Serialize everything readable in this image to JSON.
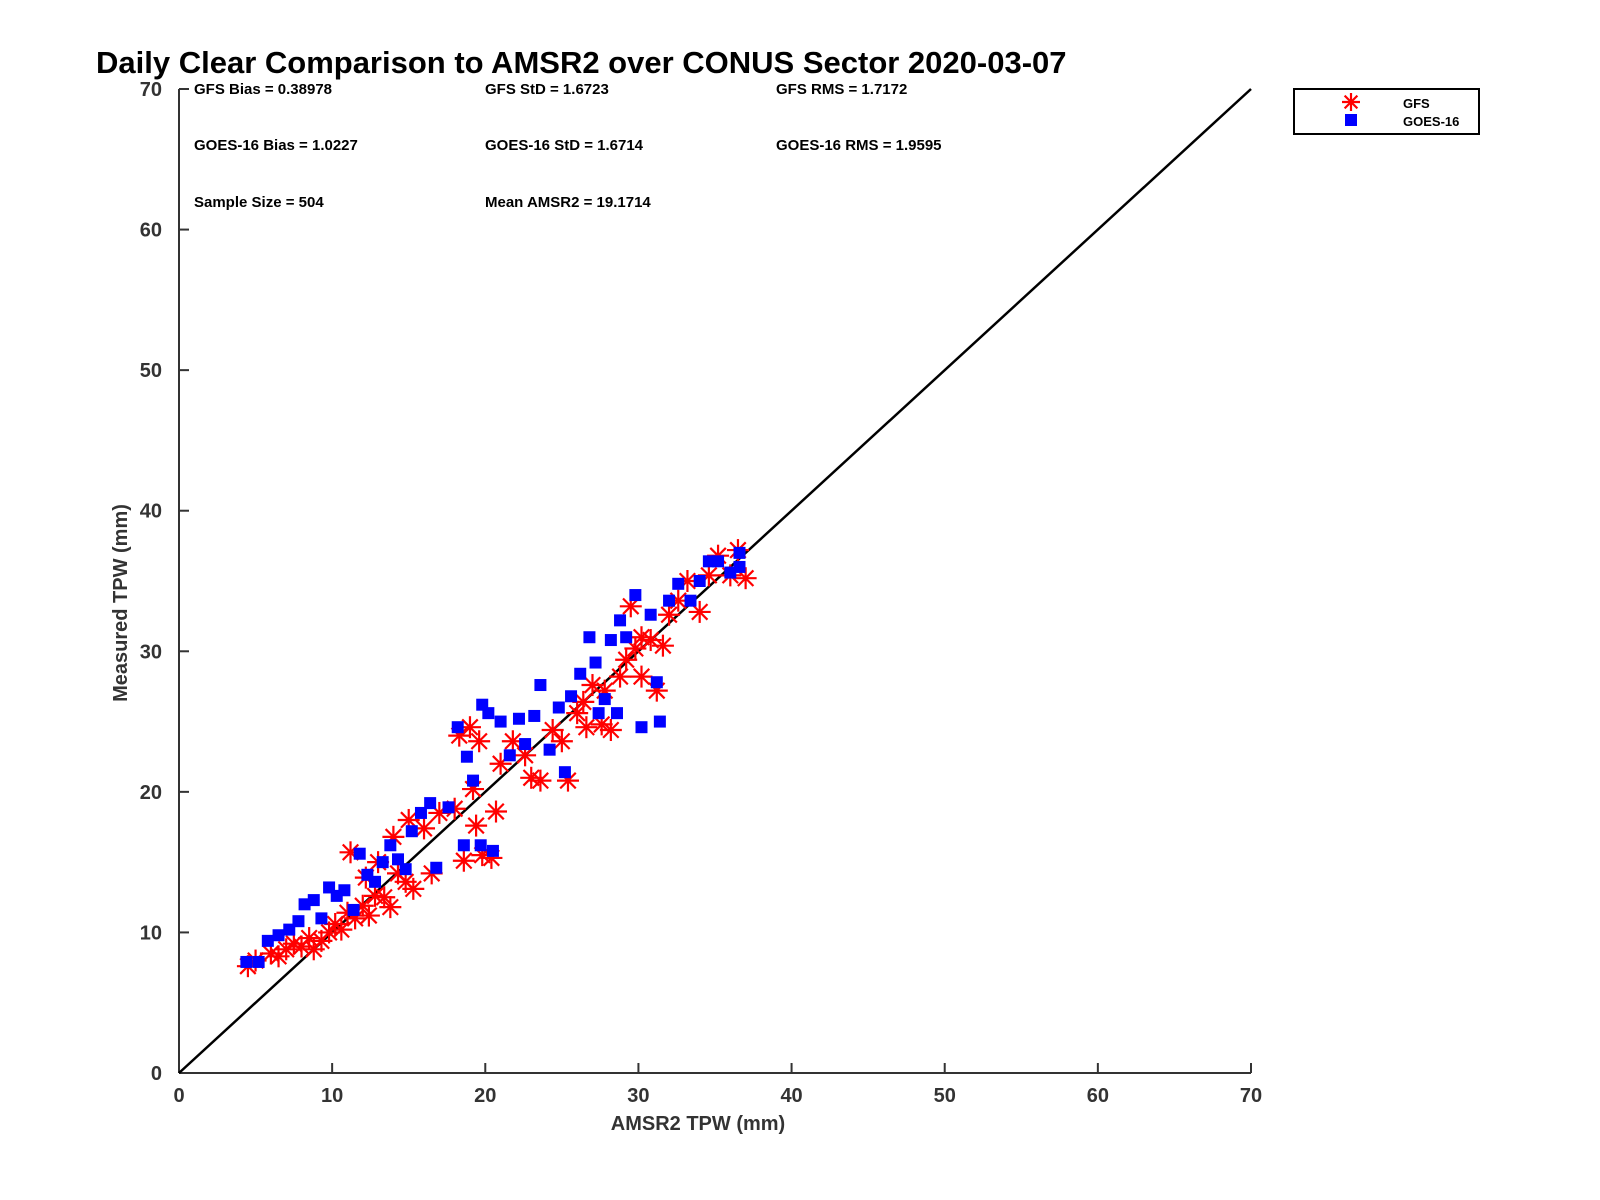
{
  "colors": {
    "gfs": "#ff0000",
    "goes": "#0000ff",
    "line": "#000000"
  },
  "stats": {
    "gfs_bias": "GFS Bias = 0.38978",
    "gfs_std": "GFS StD = 1.6723",
    "gfs_rms": "GFS RMS = 1.7172",
    "goes_bias": "GOES-16 Bias = 1.0227",
    "goes_std": "GOES-16 StD = 1.6714",
    "goes_rms": "GOES-16 RMS = 1.9595",
    "sample_size": "Sample Size = 504",
    "mean_amsr2": "Mean AMSR2 = 19.1714"
  },
  "chart_data": {
    "type": "scatter",
    "title": "Daily Clear Comparison to AMSR2 over CONUS Sector 2020-03-07",
    "xlabel": "AMSR2 TPW (mm)",
    "ylabel": "Measured TPW (mm)",
    "xlim": [
      0,
      70
    ],
    "ylim": [
      0,
      70
    ],
    "xticks": [
      "0",
      "10",
      "20",
      "30",
      "40",
      "50",
      "60",
      "70"
    ],
    "yticks": [
      "0",
      "10",
      "20",
      "30",
      "40",
      "50",
      "60",
      "70"
    ],
    "legend_position": "outside-top-right",
    "reference_line": {
      "name": "1:1",
      "from": [
        0,
        0
      ],
      "to": [
        70,
        70
      ]
    },
    "series": [
      {
        "name": "GFS",
        "marker": "asterisk",
        "points": [
          [
            4.5,
            7.6
          ],
          [
            5.0,
            8.0
          ],
          [
            6.0,
            8.5
          ],
          [
            6.5,
            8.3
          ],
          [
            7.0,
            8.8
          ],
          [
            7.5,
            9.2
          ],
          [
            8.0,
            9.0
          ],
          [
            8.5,
            9.6
          ],
          [
            8.8,
            8.8
          ],
          [
            9.3,
            9.4
          ],
          [
            9.8,
            10.0
          ],
          [
            10.2,
            10.6
          ],
          [
            10.6,
            10.2
          ],
          [
            11.0,
            11.4
          ],
          [
            11.5,
            11.0
          ],
          [
            12.0,
            11.9
          ],
          [
            12.4,
            11.2
          ],
          [
            12.8,
            12.6
          ],
          [
            13.4,
            12.5
          ],
          [
            13.8,
            11.8
          ],
          [
            14.3,
            14.2
          ],
          [
            14.8,
            13.6
          ],
          [
            15.3,
            13.1
          ],
          [
            16.5,
            14.2
          ],
          [
            11.2,
            15.7
          ],
          [
            12.2,
            13.9
          ],
          [
            13.0,
            15.0
          ],
          [
            14.0,
            16.8
          ],
          [
            15.0,
            18.0
          ],
          [
            16.0,
            17.4
          ],
          [
            17.0,
            18.5
          ],
          [
            18.0,
            18.8
          ],
          [
            18.3,
            24.0
          ],
          [
            19.0,
            24.6
          ],
          [
            19.6,
            23.6
          ],
          [
            18.6,
            15.1
          ],
          [
            19.4,
            17.6
          ],
          [
            19.8,
            15.5
          ],
          [
            20.4,
            15.3
          ],
          [
            20.7,
            18.6
          ],
          [
            19.2,
            20.2
          ],
          [
            21.0,
            22.0
          ],
          [
            21.8,
            23.6
          ],
          [
            22.6,
            22.6
          ],
          [
            23.0,
            21.0
          ],
          [
            23.6,
            20.8
          ],
          [
            24.4,
            24.4
          ],
          [
            25.0,
            23.6
          ],
          [
            25.4,
            20.8
          ],
          [
            26.0,
            25.6
          ],
          [
            26.6,
            24.6
          ],
          [
            27.0,
            27.6
          ],
          [
            27.6,
            24.8
          ],
          [
            28.2,
            24.4
          ],
          [
            28.8,
            28.2
          ],
          [
            29.2,
            29.4
          ],
          [
            29.8,
            30.2
          ],
          [
            30.2,
            28.2
          ],
          [
            30.8,
            30.8
          ],
          [
            31.2,
            27.2
          ],
          [
            31.6,
            30.4
          ],
          [
            32.0,
            32.6
          ],
          [
            32.6,
            33.6
          ],
          [
            33.2,
            35.0
          ],
          [
            34.0,
            32.8
          ],
          [
            34.6,
            35.4
          ],
          [
            35.2,
            36.8
          ],
          [
            36.0,
            35.4
          ],
          [
            36.5,
            37.2
          ],
          [
            37.0,
            35.2
          ],
          [
            29.5,
            33.2
          ],
          [
            30.2,
            31.0
          ],
          [
            26.4,
            26.4
          ],
          [
            27.8,
            27.2
          ]
        ]
      },
      {
        "name": "GOES-16",
        "marker": "square",
        "points": [
          [
            4.4,
            7.9
          ],
          [
            5.2,
            7.9
          ],
          [
            5.8,
            9.4
          ],
          [
            6.5,
            9.8
          ],
          [
            7.2,
            10.2
          ],
          [
            7.8,
            10.8
          ],
          [
            8.2,
            12.0
          ],
          [
            8.8,
            12.3
          ],
          [
            9.3,
            11.0
          ],
          [
            9.8,
            13.2
          ],
          [
            10.3,
            12.6
          ],
          [
            10.8,
            13.0
          ],
          [
            11.4,
            11.6
          ],
          [
            11.8,
            15.6
          ],
          [
            12.3,
            14.1
          ],
          [
            12.8,
            13.6
          ],
          [
            13.3,
            15.0
          ],
          [
            13.8,
            16.2
          ],
          [
            14.3,
            15.2
          ],
          [
            14.8,
            14.5
          ],
          [
            15.2,
            17.2
          ],
          [
            15.8,
            18.5
          ],
          [
            16.4,
            19.2
          ],
          [
            16.8,
            14.6
          ],
          [
            17.6,
            18.9
          ],
          [
            18.2,
            24.6
          ],
          [
            18.8,
            22.5
          ],
          [
            19.2,
            20.8
          ],
          [
            19.8,
            26.2
          ],
          [
            20.2,
            25.6
          ],
          [
            18.6,
            16.2
          ],
          [
            19.7,
            16.2
          ],
          [
            20.5,
            15.8
          ],
          [
            21.0,
            25.0
          ],
          [
            21.6,
            22.6
          ],
          [
            22.2,
            25.2
          ],
          [
            22.6,
            23.4
          ],
          [
            23.2,
            25.4
          ],
          [
            23.6,
            27.6
          ],
          [
            24.2,
            23.0
          ],
          [
            24.8,
            26.0
          ],
          [
            25.2,
            21.4
          ],
          [
            25.6,
            26.8
          ],
          [
            26.2,
            28.4
          ],
          [
            26.8,
            31.0
          ],
          [
            27.2,
            29.2
          ],
          [
            27.8,
            26.6
          ],
          [
            28.2,
            30.8
          ],
          [
            28.8,
            32.2
          ],
          [
            29.2,
            31.0
          ],
          [
            29.8,
            34.0
          ],
          [
            30.2,
            24.6
          ],
          [
            30.8,
            32.6
          ],
          [
            31.4,
            25.0
          ],
          [
            31.2,
            27.8
          ],
          [
            32.0,
            33.6
          ],
          [
            32.6,
            34.8
          ],
          [
            33.4,
            33.6
          ],
          [
            34.0,
            35.0
          ],
          [
            34.6,
            36.4
          ],
          [
            35.2,
            36.4
          ],
          [
            36.0,
            35.6
          ],
          [
            36.6,
            36.0
          ],
          [
            36.6,
            37.0
          ],
          [
            27.4,
            25.6
          ],
          [
            28.6,
            25.6
          ]
        ]
      }
    ]
  }
}
